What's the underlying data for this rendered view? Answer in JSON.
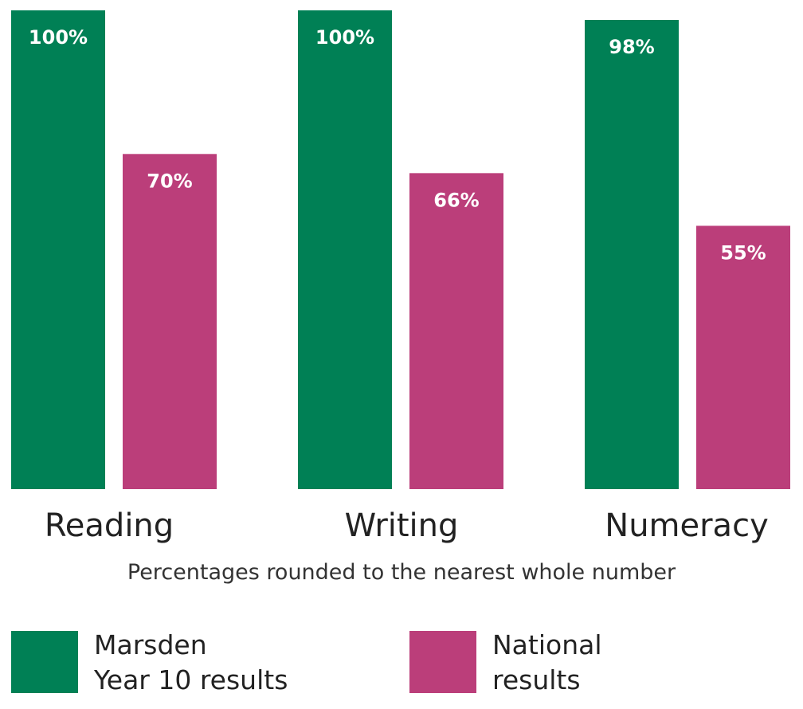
{
  "chart_data": {
    "type": "bar",
    "categories": [
      "Reading",
      "Writing",
      "Numeracy"
    ],
    "series": [
      {
        "name": "Marsden Year 10 results",
        "values": [
          100,
          100,
          98
        ],
        "labels": [
          "100%",
          "100%",
          "98%"
        ],
        "color": "#008055"
      },
      {
        "name": "National results",
        "values": [
          70,
          66,
          55
        ],
        "labels": [
          "70%",
          "66%",
          "55%"
        ],
        "color": "#bb3e7a"
      }
    ],
    "ylim": [
      0,
      100
    ],
    "grid": false,
    "legend_placement": "bottom"
  },
  "note": "Percentages rounded to the nearest whole number",
  "legend": [
    {
      "line1": "Marsden",
      "line2": "Year 10 results",
      "color": "#008055"
    },
    {
      "line1": "National",
      "line2": "results",
      "color": "#bb3e7a"
    }
  ]
}
